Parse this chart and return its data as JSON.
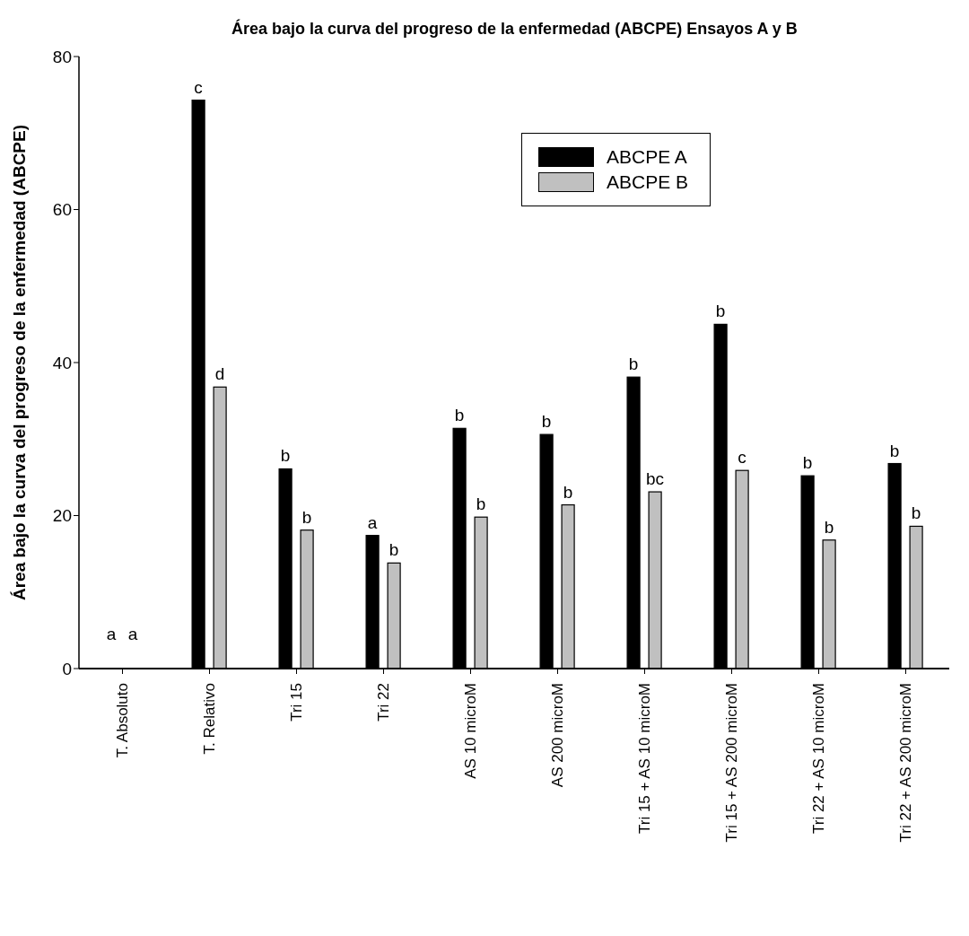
{
  "chart_data": {
    "type": "bar",
    "title": "Área bajo la curva del progreso de la enfermedad (ABCPE) Ensayos A y B",
    "ylabel": "Área bajo la curva del progreso de la enfermedad (ABCPE)",
    "categories": [
      "T. Absoluto",
      "T. Relativo",
      "Tri 15",
      "Tri 22",
      "AS 10 microM",
      "AS 200 microM",
      "Tri 15 + AS 10 microM",
      "Tri 15 + AS 200 microM",
      "Tri 22 + AS 10 microM",
      "Tri 22 + AS 200 microM"
    ],
    "series": [
      {
        "name": "ABCPE A",
        "color": "#000000",
        "values": [
          0,
          74.3,
          26.1,
          17.4,
          31.4,
          30.6,
          38.1,
          45.0,
          25.2,
          26.8
        ],
        "value_labels": [
          "a",
          "c",
          "b",
          "a",
          "b",
          "b",
          "b",
          "b",
          "b",
          "b"
        ]
      },
      {
        "name": "ABCPE B",
        "color": "#c0c0c0",
        "values": [
          0,
          36.8,
          18.1,
          13.8,
          19.8,
          21.4,
          23.1,
          25.9,
          16.8,
          18.6
        ],
        "value_labels": [
          "a",
          "d",
          "b",
          "b",
          "b",
          "b",
          "bc",
          "c",
          "b",
          "b"
        ]
      }
    ],
    "ylim": [
      0,
      80
    ],
    "yticks": [
      0,
      20,
      40,
      60,
      80
    ],
    "legend": "top right"
  }
}
